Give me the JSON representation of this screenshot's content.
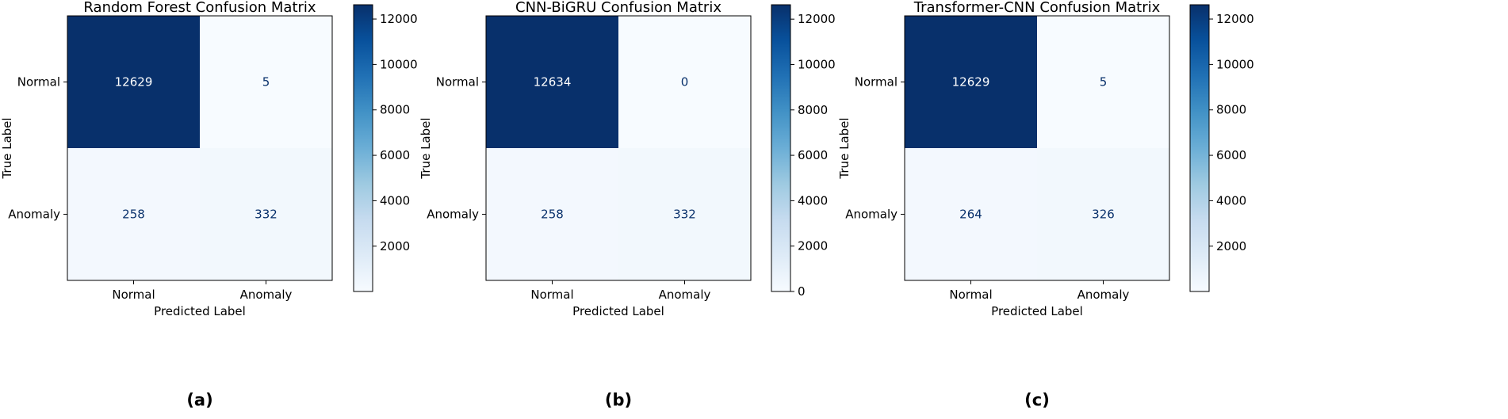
{
  "chart_data": [
    {
      "type": "heatmap",
      "title": "Random Forest Confusion Matrix",
      "xlabel": "Predicted Label",
      "ylabel": "True Label",
      "x_categories": [
        "Normal",
        "Anomaly"
      ],
      "y_categories": [
        "Normal",
        "Anomaly"
      ],
      "values": [
        [
          12629,
          5
        ],
        [
          258,
          332
        ]
      ],
      "colormap": "Blues",
      "colorbar_ticks": [
        2000,
        4000,
        6000,
        8000,
        10000,
        12000
      ],
      "sublabel": "(a)"
    },
    {
      "type": "heatmap",
      "title": "CNN-BiGRU Confusion Matrix",
      "xlabel": "Predicted Label",
      "ylabel": "True Label",
      "x_categories": [
        "Normal",
        "Anomaly"
      ],
      "y_categories": [
        "Normal",
        "Anomaly"
      ],
      "values": [
        [
          12634,
          0
        ],
        [
          258,
          332
        ]
      ],
      "colormap": "Blues",
      "colorbar_ticks": [
        0,
        2000,
        4000,
        6000,
        8000,
        10000,
        12000
      ],
      "sublabel": "(b)"
    },
    {
      "type": "heatmap",
      "title": "Transformer-CNN Confusion Matrix",
      "xlabel": "Predicted Label",
      "ylabel": "True Label",
      "x_categories": [
        "Normal",
        "Anomaly"
      ],
      "y_categories": [
        "Normal",
        "Anomaly"
      ],
      "values": [
        [
          12629,
          5
        ],
        [
          264,
          326
        ]
      ],
      "colormap": "Blues",
      "colorbar_ticks": [
        2000,
        4000,
        6000,
        8000,
        10000,
        12000
      ],
      "sublabel": "(c)"
    }
  ]
}
